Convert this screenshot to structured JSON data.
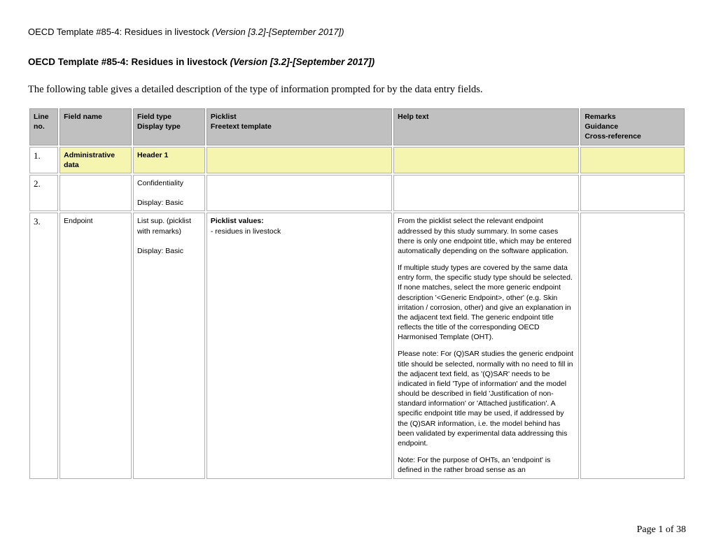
{
  "header": {
    "prefix": "OECD Template #85-4: Residues in livestock ",
    "suffix": "(Version [3.2]-[September 2017])"
  },
  "title": {
    "prefix": "OECD Template #85-4: Residues in livestock ",
    "suffix": "(Version [3.2]-[September 2017])"
  },
  "intro": "The following table gives a detailed description of the type of information prompted for by the data entry fields.",
  "columns": {
    "c1a": "Line",
    "c1b": "no.",
    "c2a": "Field name",
    "c2b": "",
    "c3a": "Field type",
    "c3b": "Display type",
    "c4a": "Picklist",
    "c4b": "Freetext template",
    "c5a": "Help text",
    "c5b": "",
    "c6a": "Remarks",
    "c6b": "Guidance",
    "c6c": "Cross-reference"
  },
  "rows": [
    {
      "no": "1.",
      "field": "Administrative data",
      "type": "Header 1",
      "pick": "",
      "help": "",
      "rem": "",
      "highlight": true,
      "boldField": true,
      "boldType": true
    },
    {
      "no": "2.",
      "field": "",
      "type_lines": [
        "Confidentiality",
        "",
        "Display: Basic"
      ],
      "pick": "",
      "help": "",
      "rem": ""
    },
    {
      "no": "3.",
      "field": "Endpoint",
      "type_lines": [
        "List sup. (picklist with remarks)",
        "",
        "Display: Basic"
      ],
      "pick_title": "Picklist values:",
      "pick_items": [
        "- residues in livestock"
      ],
      "help_paras": [
        "From the picklist select the relevant endpoint addressed by this study summary. In some cases there is only one endpoint title, which may be entered automatically depending on the software application.",
        "If multiple study types are covered by the same data entry form, the specific study type should be selected. If none matches, select the more generic endpoint description '<Generic Endpoint>, other' (e.g. Skin irritation / corrosion, other) and give an explanation in the adjacent text field. The generic endpoint title reflects the title of the corresponding OECD Harmonised Template (OHT).",
        "Please note: For (Q)SAR studies the generic endpoint title should be selected, normally with no need to fill in the adjacent text field, as '(Q)SAR' needs to be indicated in field 'Type of information' and the model should be described in field 'Justification of non-standard information' or 'Attached justification'. A specific endpoint title may be used, if addressed by the (Q)SAR information, i.e. the model behind has been validated by experimental data addressing this endpoint.",
        "Note: For the purpose of OHTs, an 'endpoint' is defined in the rather broad sense as an"
      ],
      "rem": ""
    }
  ],
  "footer": "Page 1 of 38"
}
